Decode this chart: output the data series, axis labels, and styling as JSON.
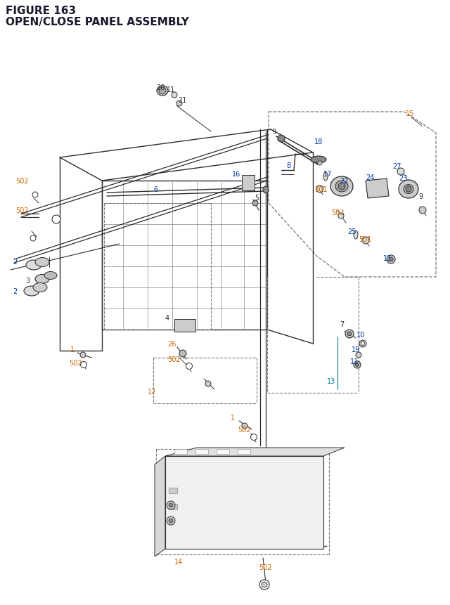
{
  "title_line1": "FIGURE 163",
  "title_line2": "OPEN/CLOSE PANEL ASSEMBLY",
  "title_color": "#1a1a2e",
  "title_fontsize": 11,
  "bg_color": "#ffffff",
  "line_color": "#2d2d2d",
  "orange_color": "#cc6600",
  "blue_color": "#003399",
  "cyan_color": "#007799",
  "label_fontsize": 7.0,
  "dashed_color": "#777777"
}
